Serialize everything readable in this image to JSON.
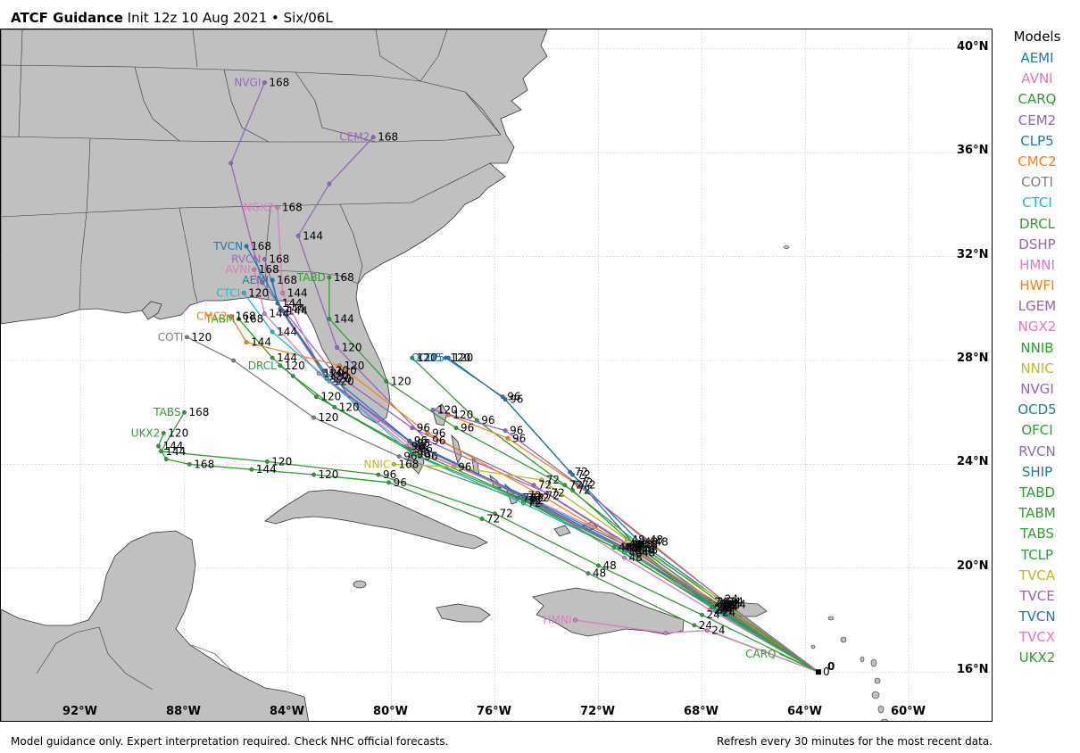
{
  "header": {
    "title_bold": "ATCF Guidance",
    "title_rest": "Init 12z 10 Aug 2021 • Six/06L"
  },
  "footer": {
    "disclaimer": "Model guidance only. Expert interpretation required. Check NHC official forecasts.",
    "refresh_note": "Refresh every 30 minutes for the most recent data."
  },
  "map": {
    "lat_labels": [
      "40°N",
      "36°N",
      "32°N",
      "28°N",
      "24°N",
      "20°N",
      "16°N"
    ],
    "lat_values": [
      40,
      36,
      32,
      28,
      24,
      20,
      16
    ],
    "lon_labels": [
      "92°W",
      "88°W",
      "84°W",
      "80°W",
      "76°W",
      "72°W",
      "68°W",
      "64°W",
      "60°W"
    ],
    "lon_values": [
      -92,
      -88,
      -84,
      -80,
      -76,
      -72,
      -68,
      -64,
      -60
    ],
    "land_color": "#c0c0c0",
    "border_color": "#333333",
    "grid_color": "#bbbbbb",
    "start_marker": "0"
  },
  "legend": {
    "title": "Models",
    "items": [
      {
        "name": "AEMI",
        "color": "#1f77b4"
      },
      {
        "name": "AVNI",
        "color": "#e377c2"
      },
      {
        "name": "CARQ",
        "color": "#2ca02c"
      },
      {
        "name": "CEM2",
        "color": "#9467bd"
      },
      {
        "name": "CLP5",
        "color": "#1f77b4"
      },
      {
        "name": "CMC2",
        "color": "#ff7f0e"
      },
      {
        "name": "COTI",
        "color": "#7f7f7f"
      },
      {
        "name": "CTCI",
        "color": "#17becf"
      },
      {
        "name": "DRCL",
        "color": "#2ca02c"
      },
      {
        "name": "DSHP",
        "color": "#9467bd"
      },
      {
        "name": "HMNI",
        "color": "#e377c2"
      },
      {
        "name": "HWFI",
        "color": "#ff7f0e"
      },
      {
        "name": "LGEM",
        "color": "#9467bd"
      },
      {
        "name": "NGX2",
        "color": "#e377c2"
      },
      {
        "name": "NNIB",
        "color": "#2ca02c"
      },
      {
        "name": "NNIC",
        "color": "#bcbd22"
      },
      {
        "name": "NVGI",
        "color": "#9467bd"
      },
      {
        "name": "OCD5",
        "color": "#1f77b4"
      },
      {
        "name": "OFCI",
        "color": "#2ca02c"
      },
      {
        "name": "RVCN",
        "color": "#9467bd"
      },
      {
        "name": "SHIP",
        "color": "#1f77b4"
      },
      {
        "name": "TABD",
        "color": "#2ca02c"
      },
      {
        "name": "TABM",
        "color": "#2ca02c"
      },
      {
        "name": "TABS",
        "color": "#2ca02c"
      },
      {
        "name": "TCLP",
        "color": "#2ca02c"
      },
      {
        "name": "TVCA",
        "color": "#bcbd22"
      },
      {
        "name": "TVCE",
        "color": "#9467bd"
      },
      {
        "name": "TVCN",
        "color": "#1f77b4"
      },
      {
        "name": "TVCX",
        "color": "#e377c2"
      },
      {
        "name": "UKX2",
        "color": "#2ca02c"
      }
    ]
  },
  "tracks": [
    {
      "model": "CLP5",
      "color": "#1f77b4",
      "show_label": true,
      "label_hour": "120",
      "points": [
        [
          -63.5,
          16.0,
          "0"
        ],
        [
          -67.4,
          18.6,
          "24"
        ],
        [
          -70.6,
          20.9,
          "48"
        ],
        [
          -73.0,
          23.6,
          "72"
        ],
        [
          -75.6,
          26.5,
          "96"
        ],
        [
          -77.8,
          28.1,
          "120"
        ]
      ]
    },
    {
      "model": "OCD5",
      "color": "#1f77b4",
      "show_label": true,
      "label_hour": "120",
      "points": [
        [
          -63.5,
          16.0,
          "0"
        ],
        [
          -67.2,
          18.7,
          "24"
        ],
        [
          -70.4,
          21.0,
          "48"
        ],
        [
          -73.1,
          23.7,
          "72"
        ],
        [
          -75.7,
          26.6,
          "96"
        ],
        [
          -77.9,
          28.1,
          "120"
        ]
      ]
    },
    {
      "model": "NVGI",
      "color": "#9467bd",
      "show_label": true,
      "label_hour": "168",
      "points": [
        [
          -63.5,
          16.0,
          "0"
        ],
        [
          -67.6,
          18.7,
          "24"
        ],
        [
          -70.9,
          20.9,
          "48"
        ],
        [
          -74.5,
          23.2,
          "72"
        ],
        [
          -79.2,
          25.4,
          "96"
        ],
        [
          -82.3,
          27.6,
          "120"
        ],
        [
          -85.0,
          31.0,
          ""
        ],
        [
          -86.2,
          35.6,
          ""
        ],
        [
          -84.9,
          38.7,
          "168"
        ]
      ]
    },
    {
      "model": "CEM2",
      "color": "#9467bd",
      "show_label": true,
      "label_hour": "168",
      "points": [
        [
          -63.5,
          16.0,
          "0"
        ],
        [
          -67.5,
          18.6,
          "24"
        ],
        [
          -70.5,
          20.7,
          "48"
        ],
        [
          -74.0,
          22.9,
          "72"
        ],
        [
          -78.6,
          24.9,
          "96"
        ],
        [
          -82.1,
          28.5,
          "120"
        ],
        [
          -83.6,
          32.8,
          "144"
        ],
        [
          -82.4,
          34.8,
          ""
        ],
        [
          -80.7,
          36.6,
          "168"
        ]
      ]
    },
    {
      "model": "NGX2",
      "color": "#e377c2",
      "show_label": true,
      "label_hour": "168",
      "points": [
        [
          -63.5,
          16.0,
          "0"
        ],
        [
          -67.7,
          18.4,
          "24"
        ],
        [
          -71.0,
          20.4,
          "48"
        ],
        [
          -74.6,
          22.7,
          "72"
        ],
        [
          -79.1,
          24.6,
          "96"
        ],
        [
          -82.6,
          27.4,
          "120"
        ],
        [
          -84.2,
          30.6,
          "144"
        ],
        [
          -84.4,
          33.9,
          "168"
        ]
      ]
    },
    {
      "model": "TVCN",
      "color": "#1f77b4",
      "show_label": true,
      "label_hour": "168",
      "points": [
        [
          -63.5,
          16.0,
          "0"
        ],
        [
          -67.5,
          18.5,
          "24"
        ],
        [
          -71.0,
          20.8,
          "48"
        ],
        [
          -74.8,
          22.7,
          "72"
        ],
        [
          -79.2,
          24.8,
          "96"
        ],
        [
          -82.4,
          27.2,
          "120"
        ],
        [
          -84.2,
          29.9,
          "144"
        ],
        [
          -85.6,
          32.4,
          "168"
        ]
      ]
    },
    {
      "model": "RVCN",
      "color": "#9467bd",
      "show_label": true,
      "label_hour": "168",
      "points": [
        [
          -63.5,
          16.0,
          "0"
        ],
        [
          -67.6,
          18.5,
          "24"
        ],
        [
          -71.1,
          20.8,
          "48"
        ],
        [
          -74.9,
          22.7,
          "72"
        ],
        [
          -79.3,
          24.9,
          "96"
        ],
        [
          -82.5,
          27.3,
          "120"
        ],
        [
          -84.3,
          30.0,
          "144"
        ],
        [
          -84.9,
          31.9,
          "168"
        ]
      ]
    },
    {
      "model": "AVNI",
      "color": "#e377c2",
      "show_label": true,
      "label_hour": "168",
      "points": [
        [
          -63.5,
          16.0,
          "0"
        ],
        [
          -67.4,
          18.5,
          "24"
        ],
        [
          -70.8,
          20.9,
          "48"
        ],
        [
          -74.6,
          22.7,
          "72"
        ],
        [
          -79.4,
          24.7,
          "96"
        ],
        [
          -82.8,
          27.5,
          "120"
        ],
        [
          -84.9,
          29.8,
          "144"
        ],
        [
          -85.3,
          31.5,
          "168"
        ]
      ]
    },
    {
      "model": "AEMI",
      "color": "#1f77b4",
      "show_label": true,
      "label_hour": "168",
      "points": [
        [
          -63.5,
          16.0,
          "0"
        ],
        [
          -67.5,
          18.6,
          "24"
        ],
        [
          -71.0,
          20.9,
          "48"
        ],
        [
          -74.9,
          22.8,
          "72"
        ],
        [
          -79.3,
          24.9,
          "96"
        ],
        [
          -82.6,
          27.6,
          "120"
        ],
        [
          -84.4,
          30.2,
          "144"
        ],
        [
          -84.6,
          31.1,
          "168"
        ]
      ]
    },
    {
      "model": "TABD",
      "color": "#2ca02c",
      "show_label": true,
      "label_hour": "168",
      "points": [
        [
          -63.5,
          16.0,
          "0"
        ],
        [
          -67.4,
          18.3,
          "24"
        ],
        [
          -70.4,
          20.7,
          "48"
        ],
        [
          -73.0,
          23.0,
          "72"
        ],
        [
          -77.5,
          25.4,
          "96"
        ],
        [
          -80.2,
          27.2,
          "120"
        ],
        [
          -82.4,
          29.6,
          "144"
        ],
        [
          -82.4,
          31.2,
          "168"
        ]
      ]
    },
    {
      "model": "TABM",
      "color": "#2ca02c",
      "show_label": true,
      "label_hour": "168",
      "points": [
        [
          -63.5,
          16.0,
          "0"
        ],
        [
          -67.7,
          18.7,
          "24"
        ],
        [
          -71.2,
          20.8,
          "48"
        ],
        [
          -74.8,
          22.6,
          "72"
        ],
        [
          -79.3,
          24.6,
          "96"
        ],
        [
          -82.9,
          26.6,
          "120"
        ],
        [
          -84.6,
          28.1,
          "144"
        ],
        [
          -85.9,
          29.6,
          "168"
        ]
      ]
    },
    {
      "model": "TABS",
      "color": "#2ca02c",
      "show_label": true,
      "label_hour": "168",
      "points": [
        [
          -63.5,
          16.0,
          "0"
        ],
        [
          -68.0,
          18.2,
          "24"
        ],
        [
          -72.0,
          20.1,
          "48"
        ],
        [
          -76.0,
          22.1,
          "72"
        ],
        [
          -80.5,
          23.6,
          "96"
        ],
        [
          -84.8,
          24.1,
          "120"
        ],
        [
          -88.9,
          24.5,
          "144"
        ],
        [
          -88.0,
          26.0,
          "168"
        ]
      ]
    },
    {
      "model": "UKX2",
      "color": "#2ca02c",
      "show_label": true,
      "label_hour": "120",
      "points": [
        [
          -63.5,
          16.0,
          "0"
        ],
        [
          -68.3,
          17.8,
          "24"
        ],
        [
          -72.4,
          19.8,
          "48"
        ],
        [
          -76.5,
          21.9,
          "72"
        ],
        [
          -80.1,
          23.3,
          "96"
        ],
        [
          -83.0,
          23.6,
          "120"
        ],
        [
          -85.4,
          23.8,
          "144"
        ],
        [
          -87.8,
          24.0,
          "168"
        ],
        [
          -88.7,
          24.2,
          ""
        ],
        [
          -89.0,
          24.7,
          "144"
        ],
        [
          -88.8,
          25.2,
          "120"
        ]
      ]
    },
    {
      "model": "CMC2",
      "color": "#ff7f0e",
      "show_label": true,
      "label_hour": "168",
      "points": [
        [
          -63.5,
          16.0,
          "0"
        ],
        [
          -67.3,
          18.6,
          "24"
        ],
        [
          -70.5,
          20.6,
          "48"
        ],
        [
          -74.2,
          22.8,
          "72"
        ],
        [
          -78.6,
          25.2,
          "96"
        ],
        [
          -82.0,
          27.8,
          "120"
        ],
        [
          -85.6,
          28.7,
          "144"
        ],
        [
          -86.2,
          29.7,
          "168"
        ]
      ]
    },
    {
      "model": "COTI",
      "color": "#7f7f7f",
      "show_label": true,
      "label_hour": "120",
      "points": [
        [
          -63.5,
          16.0,
          "0"
        ],
        [
          -67.3,
          18.5,
          "24"
        ],
        [
          -70.9,
          20.7,
          "48"
        ],
        [
          -74.9,
          22.6,
          "72"
        ],
        [
          -79.7,
          24.3,
          "96"
        ],
        [
          -83.0,
          25.8,
          "120"
        ],
        [
          -86.1,
          28.0,
          ""
        ],
        [
          -87.9,
          28.9,
          "120"
        ]
      ]
    },
    {
      "model": "CTCI",
      "color": "#17becf",
      "show_label": true,
      "label_hour": "120",
      "points": [
        [
          -63.5,
          16.0,
          "0"
        ],
        [
          -67.5,
          18.4,
          "24"
        ],
        [
          -71.0,
          20.6,
          "48"
        ],
        [
          -74.9,
          22.5,
          "72"
        ],
        [
          -79.2,
          24.4,
          "96"
        ],
        [
          -82.5,
          27.3,
          "120"
        ],
        [
          -84.6,
          29.1,
          "144"
        ],
        [
          -85.7,
          30.6,
          "120"
        ]
      ]
    },
    {
      "model": "DRCL",
      "color": "#2ca02c",
      "show_label": true,
      "label_hour": "120",
      "points": [
        [
          -63.5,
          16.0,
          "0"
        ],
        [
          -67.6,
          18.5,
          "24"
        ],
        [
          -71.4,
          20.8,
          "48"
        ],
        [
          -75.1,
          22.7,
          "72"
        ],
        [
          -78.9,
          24.3,
          "96"
        ],
        [
          -82.2,
          26.2,
          "120"
        ],
        [
          -83.8,
          27.4,
          ""
        ],
        [
          -84.3,
          27.8,
          "120"
        ]
      ]
    },
    {
      "model": "HMNI",
      "color": "#e377c2",
      "show_label": true,
      "label_hour": "",
      "points": [
        [
          -63.5,
          16.0,
          "0"
        ],
        [
          -67.8,
          17.6,
          "24"
        ],
        [
          -69.4,
          17.5,
          ""
        ],
        [
          -72.9,
          18.0,
          ""
        ]
      ]
    },
    {
      "model": "NNIC",
      "color": "#bcbd22",
      "show_label": true,
      "label_hour": "168",
      "points": [
        [
          -63.5,
          16.0,
          "0"
        ],
        [
          -67.3,
          18.8,
          "24"
        ],
        [
          -70.9,
          21.1,
          "48"
        ],
        [
          -74.2,
          23.4,
          "72"
        ],
        [
          -77.6,
          23.9,
          "96"
        ],
        [
          -79.9,
          24.0,
          "168"
        ]
      ]
    },
    {
      "model": "OFCI",
      "color": "#2ca02c",
      "show_label": false,
      "label_hour": "",
      "points": [
        [
          -63.5,
          16.0,
          "0"
        ],
        [
          -67.2,
          18.6,
          "24"
        ],
        [
          -70.4,
          20.9,
          "48"
        ],
        [
          -73.3,
          23.2,
          "72"
        ],
        [
          -76.7,
          25.7,
          "96"
        ],
        [
          -79.2,
          28.1,
          "120"
        ]
      ]
    },
    {
      "model": "HWFI",
      "color": "#ff7f0e",
      "show_label": false,
      "label_hour": "",
      "points": [
        [
          -63.5,
          16.0,
          "0"
        ],
        [
          -67.0,
          18.6,
          "24"
        ],
        [
          -70.0,
          21.0,
          "48"
        ],
        [
          -72.8,
          23.2,
          "72"
        ],
        [
          -75.5,
          25.0,
          "96"
        ],
        [
          -77.8,
          25.9,
          "120"
        ]
      ]
    },
    {
      "model": "LGEM",
      "color": "#9467bd",
      "show_label": false,
      "label_hour": "",
      "points": [
        [
          -63.5,
          16.0,
          "0"
        ],
        [
          -67.1,
          18.7,
          "24"
        ],
        [
          -70.2,
          21.1,
          "48"
        ],
        [
          -72.9,
          23.3,
          "72"
        ],
        [
          -75.6,
          25.3,
          "96"
        ],
        [
          -78.4,
          26.1,
          "120"
        ]
      ]
    },
    {
      "model": "CARQ",
      "color": "#2ca02c",
      "show_label": true,
      "label_hour": "",
      "points": [
        [
          -65.0,
          16.7,
          ""
        ],
        [
          -63.5,
          16.0,
          "0"
        ]
      ]
    }
  ]
}
